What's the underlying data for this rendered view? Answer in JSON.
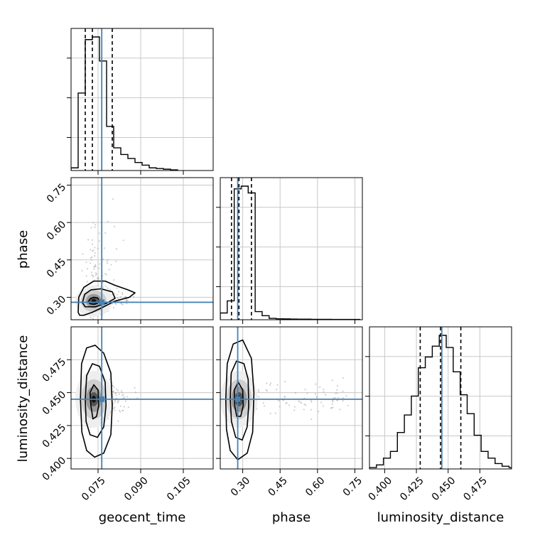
{
  "chart_data": {
    "type": "corner",
    "parameters": [
      "geocent_time",
      "phase",
      "luminosity_distance"
    ],
    "truths": {
      "geocent_time": 0.0763,
      "phase": 0.28,
      "luminosity_distance": 0.445
    },
    "quantiles": {
      "geocent_time": [
        0.0705,
        0.073,
        0.08
      ],
      "phase": [
        0.255,
        0.285,
        0.335
      ],
      "luminosity_distance": [
        0.428,
        0.444,
        0.46
      ]
    },
    "colors": {
      "truth": "#4682b4",
      "hist": "#000000",
      "quantile": "#000000",
      "grid": "#c8c8c8"
    },
    "grid": true,
    "diagonal": [
      {
        "param": "geocent_time",
        "xlim": [
          0.0655,
          0.1155
        ],
        "ticks": [
          0.075,
          0.09,
          0.105
        ],
        "tick_labels": [
          "0.075",
          "0.090",
          "0.105"
        ],
        "bin_edges": [
          0.0655,
          0.068,
          0.0705,
          0.073,
          0.0755,
          0.078,
          0.0805,
          0.083,
          0.0855,
          0.088,
          0.0905,
          0.093,
          0.0955,
          0.098,
          0.1005,
          0.103
        ],
        "counts": [
          0.02,
          0.58,
          0.98,
          1.0,
          0.82,
          0.33,
          0.17,
          0.12,
          0.09,
          0.06,
          0.04,
          0.02,
          0.015,
          0.01,
          0.005
        ]
      },
      {
        "param": "phase",
        "xlim": [
          0.21,
          0.78
        ],
        "ticks": [
          0.3,
          0.45,
          0.6,
          0.75
        ],
        "tick_labels": [
          "0.30",
          "0.45",
          "0.60",
          "0.75"
        ],
        "bin_edges": [
          0.21,
          0.238,
          0.266,
          0.294,
          0.322,
          0.35,
          0.378,
          0.406,
          0.434,
          0.462,
          0.49,
          0.518,
          0.546,
          0.574,
          0.602,
          0.63,
          0.658,
          0.686,
          0.714,
          0.742,
          0.77
        ],
        "counts": [
          0.05,
          0.14,
          0.97,
          0.99,
          0.94,
          0.06,
          0.03,
          0.01,
          0.007,
          0.006,
          0.005,
          0.004,
          0.004,
          0.003,
          0.003,
          0.003,
          0.002,
          0.002,
          0.002,
          0.002
        ]
      },
      {
        "param": "luminosity_distance",
        "xlim": [
          0.388,
          0.5
        ],
        "ticks": [
          0.4,
          0.425,
          0.45,
          0.475
        ],
        "tick_labels": [
          "0.400",
          "0.425",
          "0.450",
          "0.475"
        ],
        "bin_edges": [
          0.388,
          0.3935,
          0.399,
          0.4045,
          0.41,
          0.4155,
          0.421,
          0.4265,
          0.432,
          0.4375,
          0.443,
          0.4485,
          0.454,
          0.4595,
          0.465,
          0.4705,
          0.476,
          0.4815,
          0.487,
          0.4925,
          0.498,
          0.5
        ],
        "counts": [
          0.01,
          0.03,
          0.08,
          0.13,
          0.27,
          0.4,
          0.54,
          0.75,
          0.83,
          0.91,
          0.99,
          0.9,
          0.72,
          0.55,
          0.41,
          0.25,
          0.13,
          0.08,
          0.04,
          0.02,
          0.01
        ]
      }
    ],
    "scatter_panels": [
      {
        "x_param": "geocent_time",
        "y_param": "phase",
        "xlim": [
          0.0655,
          0.1155
        ],
        "ylim": [
          0.21,
          0.78
        ],
        "yticks": [
          0.3,
          0.45,
          0.6,
          0.75
        ],
        "ytick_labels": [
          "0.30",
          "0.45",
          "0.60",
          "0.75"
        ],
        "center": [
          0.0735,
          0.285
        ],
        "contours": [
          [
            [
              0.0715,
              0.282
            ],
            [
              0.0723,
              0.295
            ],
            [
              0.0735,
              0.3
            ],
            [
              0.0748,
              0.298
            ],
            [
              0.0755,
              0.287
            ],
            [
              0.0748,
              0.276
            ],
            [
              0.0735,
              0.272
            ],
            [
              0.0722,
              0.274
            ]
          ],
          [
            [
              0.0695,
              0.278
            ],
            [
              0.0703,
              0.312
            ],
            [
              0.0725,
              0.33
            ],
            [
              0.076,
              0.334
            ],
            [
              0.08,
              0.322
            ],
            [
              0.081,
              0.296
            ],
            [
              0.078,
              0.276
            ],
            [
              0.074,
              0.262
            ],
            [
              0.0705,
              0.262
            ]
          ],
          [
            [
              0.068,
              0.24
            ],
            [
              0.0682,
              0.3
            ],
            [
              0.07,
              0.34
            ],
            [
              0.0735,
              0.365
            ],
            [
              0.0775,
              0.365
            ],
            [
              0.081,
              0.348
            ],
            [
              0.0855,
              0.33
            ],
            [
              0.088,
              0.318
            ],
            [
              0.086,
              0.3
            ],
            [
              0.081,
              0.285
            ],
            [
              0.077,
              0.262
            ],
            [
              0.073,
              0.24
            ],
            [
              0.07,
              0.228
            ],
            [
              0.0685,
              0.228
            ]
          ]
        ]
      },
      {
        "x_param": "geocent_time",
        "y_param": "luminosity_distance",
        "xlim": [
          0.0655,
          0.1155
        ],
        "ylim": [
          0.392,
          0.5
        ],
        "yticks": [
          0.4,
          0.425,
          0.45,
          0.475
        ],
        "ytick_labels": [
          "0.400",
          "0.425",
          "0.450",
          "0.475"
        ],
        "center": [
          0.0735,
          0.445
        ],
        "contours": [
          [
            [
              0.0725,
              0.44
            ],
            [
              0.0722,
              0.45
            ],
            [
              0.0735,
              0.456
            ],
            [
              0.075,
              0.452
            ],
            [
              0.0752,
              0.44
            ],
            [
              0.0745,
              0.432
            ],
            [
              0.0732,
              0.43
            ]
          ],
          [
            [
              0.0705,
              0.445
            ],
            [
              0.071,
              0.463
            ],
            [
              0.073,
              0.472
            ],
            [
              0.0755,
              0.47
            ],
            [
              0.0775,
              0.458
            ],
            [
              0.0778,
              0.44
            ],
            [
              0.077,
              0.424
            ],
            [
              0.0748,
              0.416
            ],
            [
              0.0722,
              0.418
            ],
            [
              0.0708,
              0.428
            ]
          ],
          [
            [
              0.0688,
              0.445
            ],
            [
              0.0692,
              0.472
            ],
            [
              0.071,
              0.484
            ],
            [
              0.074,
              0.486
            ],
            [
              0.077,
              0.48
            ],
            [
              0.0795,
              0.465
            ],
            [
              0.08,
              0.44
            ],
            [
              0.0795,
              0.418
            ],
            [
              0.077,
              0.404
            ],
            [
              0.0738,
              0.401
            ],
            [
              0.071,
              0.406
            ],
            [
              0.0693,
              0.42
            ]
          ]
        ]
      },
      {
        "x_param": "phase",
        "y_param": "luminosity_distance",
        "xlim": [
          0.21,
          0.78
        ],
        "ylim": [
          0.392,
          0.5
        ],
        "center": [
          0.285,
          0.445
        ],
        "contours": [
          [
            [
              0.268,
              0.44
            ],
            [
              0.266,
              0.452
            ],
            [
              0.282,
              0.458
            ],
            [
              0.3,
              0.452
            ],
            [
              0.302,
              0.44
            ],
            [
              0.292,
              0.432
            ],
            [
              0.276,
              0.432
            ]
          ],
          [
            [
              0.25,
              0.445
            ],
            [
              0.254,
              0.465
            ],
            [
              0.275,
              0.474
            ],
            [
              0.305,
              0.472
            ],
            [
              0.322,
              0.46
            ],
            [
              0.324,
              0.44
            ],
            [
              0.318,
              0.424
            ],
            [
              0.298,
              0.414
            ],
            [
              0.272,
              0.416
            ],
            [
              0.255,
              0.428
            ]
          ],
          [
            [
              0.232,
              0.445
            ],
            [
              0.238,
              0.472
            ],
            [
              0.262,
              0.487
            ],
            [
              0.3,
              0.49
            ],
            [
              0.335,
              0.476
            ],
            [
              0.345,
              0.45
            ],
            [
              0.34,
              0.42
            ],
            [
              0.318,
              0.404
            ],
            [
              0.28,
              0.399
            ],
            [
              0.25,
              0.406
            ],
            [
              0.235,
              0.422
            ]
          ]
        ]
      }
    ]
  }
}
